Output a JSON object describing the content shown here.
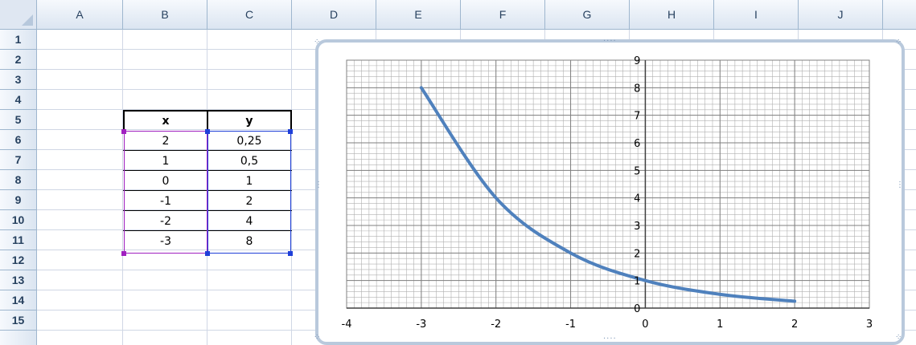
{
  "columns": [
    "A",
    "B",
    "C",
    "D",
    "E",
    "F",
    "G",
    "H",
    "I",
    "J"
  ],
  "rows": [
    "1",
    "2",
    "3",
    "4",
    "5",
    "6",
    "7",
    "8",
    "9",
    "10",
    "11",
    "12",
    "13",
    "14",
    "15"
  ],
  "table": {
    "header_x": "x",
    "header_y": "y",
    "rows": [
      {
        "x": "2",
        "y": "0,25"
      },
      {
        "x": "1",
        "y": "0,5"
      },
      {
        "x": "0",
        "y": "1"
      },
      {
        "x": "-1",
        "y": "2"
      },
      {
        "x": "-2",
        "y": "4"
      },
      {
        "x": "-3",
        "y": "8"
      }
    ]
  },
  "colors": {
    "line": "#4f81bd",
    "selection_x": "#a020c0",
    "selection_y": "#1f3fd8",
    "grid": "#7f7f7f"
  },
  "chart_data": {
    "type": "scatter",
    "series": [
      {
        "x": [
          -3,
          -2,
          -1,
          0,
          1,
          2
        ],
        "y": [
          8,
          4,
          2,
          1,
          0.5,
          0.25
        ]
      }
    ],
    "smooth": true,
    "xlim": [
      -4,
      3
    ],
    "ylim": [
      0,
      9
    ],
    "xticks": [
      "-4",
      "-3",
      "-2",
      "-1",
      "0",
      "1",
      "2",
      "3"
    ],
    "yticks": [
      "0",
      "1",
      "2",
      "3",
      "4",
      "5",
      "6",
      "7",
      "8",
      "9"
    ],
    "grid": true,
    "legend": "none"
  }
}
